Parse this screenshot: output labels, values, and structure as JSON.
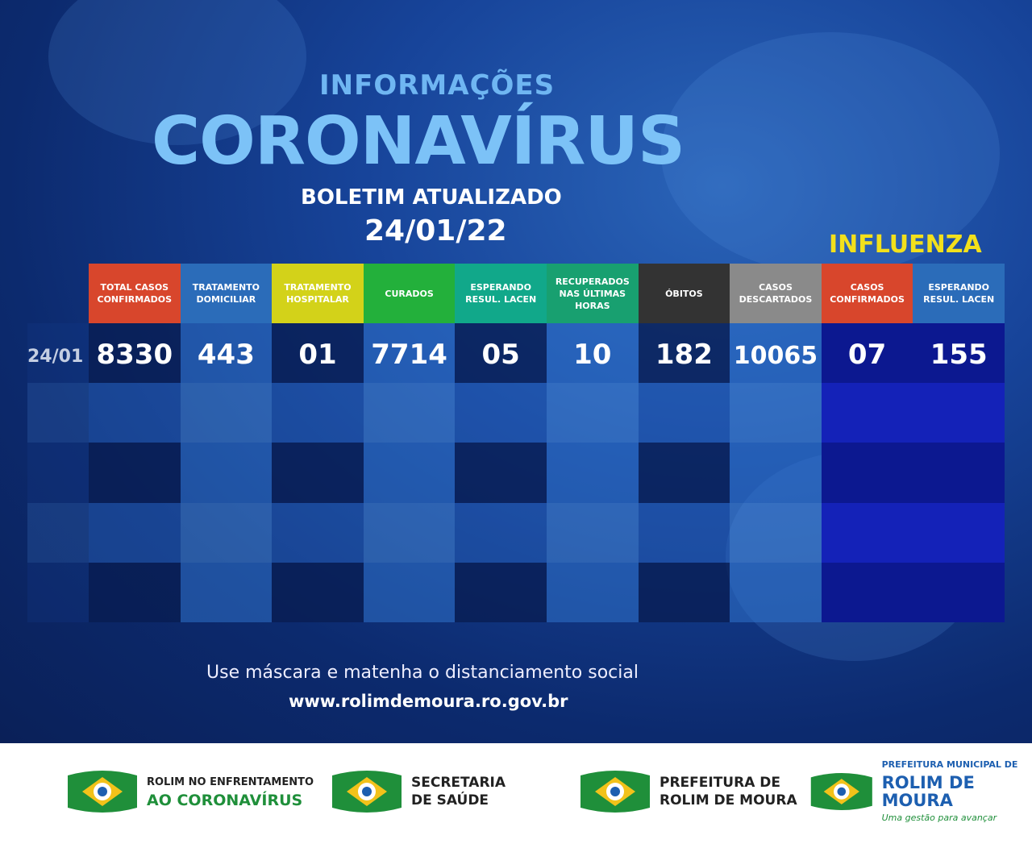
{
  "header": {
    "subtitle": "INFORMAÇÕES",
    "title": "CORONAVÍRUS",
    "bulletin": "BOLETIM ATUALIZADO",
    "date": "24/01/22"
  },
  "influenza_label": "INFLUENZA",
  "table": {
    "columns": [
      {
        "lines": [
          "TOTAL CASOS",
          "CONFIRMADOS"
        ],
        "color": "#d8462c"
      },
      {
        "lines": [
          "TRATAMENTO",
          "DOMICILIAR"
        ],
        "color": "#2b6cb9"
      },
      {
        "lines": [
          "TRATAMENTO",
          "HOSPITALAR"
        ],
        "color": "#d3d219"
      },
      {
        "lines": [
          "CURADOS"
        ],
        "color": "#23b03b"
      },
      {
        "lines": [
          "ESPERANDO",
          "RESUL. LACEN"
        ],
        "color": "#11a88a"
      },
      {
        "lines": [
          "RECUPERADOS",
          "NAS ÚLTIMAS",
          "HORAS"
        ],
        "color": "#18a070"
      },
      {
        "lines": [
          "ÓBITOS"
        ],
        "color": "#333333"
      },
      {
        "lines": [
          "CASOS",
          "DESCARTADOS"
        ],
        "color": "#8a8a8a"
      },
      {
        "lines": [
          "CASOS",
          "CONFIRMADOS"
        ],
        "color": "#d8462c"
      },
      {
        "lines": [
          "ESPERANDO",
          "RESUL. LACEN"
        ],
        "color": "#2b6cb9"
      }
    ],
    "rows": [
      {
        "label": "24/01",
        "values": [
          "8330",
          "443",
          "01",
          "7714",
          "05",
          "10",
          "182",
          "10065",
          "07",
          "155"
        ]
      }
    ]
  },
  "footer": {
    "message": "Use máscara e matenha o distanciamento social",
    "website": "www.rolimdemoura.ro.gov.br",
    "logos": [
      {
        "lines": [
          "ROLIM NO ENFRENTAMENTO",
          "AO CORONAVÍRUS"
        ]
      },
      {
        "lines": [
          "SECRETARIA",
          "DE SAÚDE"
        ]
      },
      {
        "lines": [
          "PREFEITURA DE",
          "ROLIM DE MOURA"
        ]
      },
      {
        "lines": [
          "PREFEITURA MUNICIPAL DE",
          "ROLIM DE MOURA",
          "Uma gestão para avançar"
        ]
      }
    ]
  }
}
